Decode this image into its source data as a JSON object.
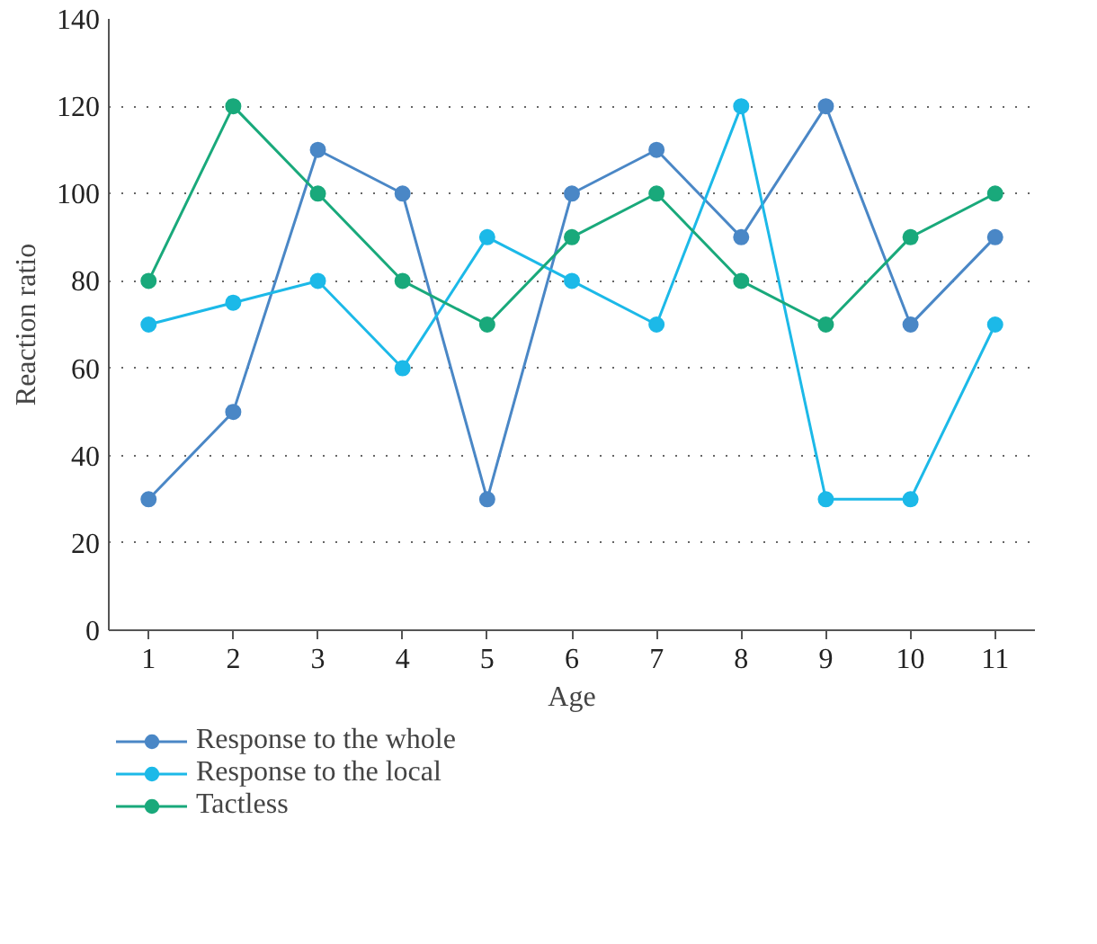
{
  "chart_data": {
    "type": "line",
    "xlabel": "Age",
    "ylabel": "Reaction ratio",
    "categories": [
      "1",
      "2",
      "3",
      "4",
      "5",
      "6",
      "7",
      "8",
      "9",
      "10",
      "11"
    ],
    "series": [
      {
        "name": "Response to the whole",
        "color": "#4a87c6",
        "values": [
          30,
          50,
          110,
          100,
          30,
          100,
          110,
          90,
          120,
          70,
          90
        ]
      },
      {
        "name": "Response to the local",
        "color": "#1cb9e8",
        "values": [
          70,
          75,
          80,
          60,
          90,
          80,
          70,
          120,
          30,
          30,
          70
        ]
      },
      {
        "name": "Tactless",
        "color": "#19a97b",
        "values": [
          80,
          120,
          100,
          80,
          70,
          90,
          100,
          80,
          70,
          90,
          100
        ]
      }
    ],
    "ylim": [
      0,
      140
    ],
    "yticks": [
      0,
      20,
      40,
      60,
      80,
      100,
      120,
      140
    ],
    "grid": "y",
    "legend": "bottom",
    "marker": "circle",
    "line_style": "solid"
  }
}
